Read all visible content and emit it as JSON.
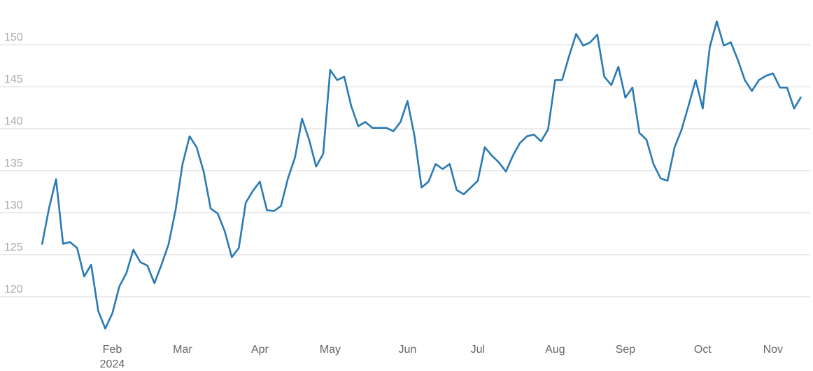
{
  "chart_data": {
    "type": "line",
    "categories": [
      null,
      null,
      null,
      null,
      null,
      null,
      null,
      null,
      null,
      null,
      "Feb",
      null,
      null,
      null,
      null,
      null,
      null,
      null,
      null,
      null,
      "Mar",
      null,
      null,
      null,
      null,
      null,
      null,
      null,
      null,
      null,
      null,
      "Apr",
      null,
      null,
      null,
      null,
      null,
      null,
      null,
      null,
      null,
      "May",
      null,
      null,
      null,
      null,
      null,
      null,
      null,
      null,
      null,
      null,
      "Jun",
      null,
      null,
      null,
      null,
      null,
      null,
      null,
      null,
      null,
      "Jul",
      null,
      null,
      null,
      null,
      null,
      null,
      null,
      null,
      null,
      null,
      "Aug",
      null,
      null,
      null,
      null,
      null,
      null,
      null,
      null,
      null,
      "Sep",
      null,
      null,
      null,
      null,
      null,
      null,
      null,
      null,
      null,
      null,
      "Oct",
      null,
      null,
      null,
      null,
      null,
      null,
      null,
      null,
      null,
      "Nov",
      null,
      null,
      null,
      null
    ],
    "x_sublabel": "2024",
    "series": [
      {
        "color": "#2a7ab5",
        "values": [
          126.2,
          130.5,
          134.0,
          126.3,
          126.5,
          125.8,
          122.4,
          123.8,
          118.3,
          116.2,
          118.0,
          121.2,
          122.8,
          125.6,
          124.1,
          123.7,
          121.6,
          123.8,
          126.2,
          130.3,
          135.8,
          139.1,
          137.8,
          134.9,
          130.5,
          129.9,
          127.8,
          124.7,
          125.8,
          131.2,
          132.6,
          133.7,
          130.3,
          130.2,
          130.8,
          134.1,
          136.6,
          141.2,
          138.7,
          135.5,
          137.0,
          147.0,
          145.8,
          146.2,
          142.7,
          140.3,
          140.8,
          140.1,
          140.1,
          140.1,
          139.7,
          140.8,
          143.3,
          139.1,
          133.0,
          133.7,
          135.8,
          135.2,
          135.8,
          132.7,
          132.2,
          133.0,
          133.8,
          137.8,
          136.8,
          136.0,
          134.9,
          136.8,
          138.3,
          139.1,
          139.3,
          138.5,
          139.9,
          145.8,
          145.8,
          148.7,
          151.3,
          149.9,
          150.3,
          151.2,
          146.2,
          145.2,
          147.4,
          143.7,
          144.9,
          139.5,
          138.7,
          135.8,
          134.1,
          133.8,
          137.8,
          139.9,
          142.8,
          145.8,
          142.4,
          149.7,
          152.8,
          149.9,
          150.3,
          148.2,
          145.8,
          144.5,
          145.8,
          146.3,
          146.6,
          144.9,
          144.9,
          142.4,
          143.8
        ]
      }
    ],
    "ylim": [
      114.9,
      154.5
    ],
    "yticks": [
      120,
      125,
      130,
      135,
      140,
      145,
      150
    ],
    "grid": true
  }
}
